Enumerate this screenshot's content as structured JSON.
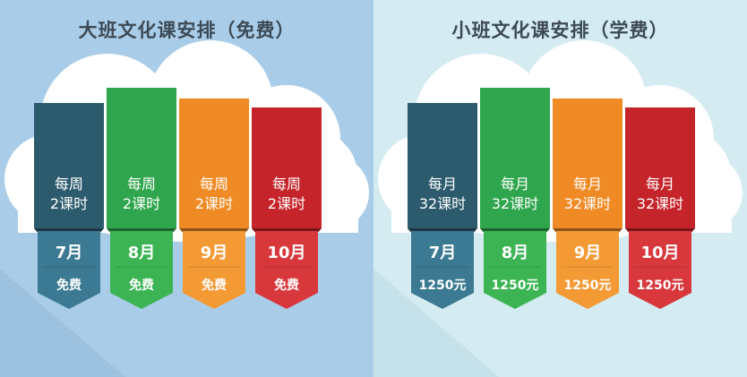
{
  "left_panel": {
    "title": "大班文化课安排（免费）",
    "columns": [
      {
        "schedule_line1": "每周",
        "schedule_line2": "2课时",
        "month": "7月",
        "price": "免费",
        "color": "#2d5b6e",
        "tag_color": "#3b7a92"
      },
      {
        "schedule_line1": "每周",
        "schedule_line2": "2课时",
        "month": "8月",
        "price": "免费",
        "color": "#2fa64d",
        "tag_color": "#3cb454"
      },
      {
        "schedule_line1": "每周",
        "schedule_line2": "2课时",
        "month": "9月",
        "price": "免费",
        "color": "#f08a24",
        "tag_color": "#f49a35"
      },
      {
        "schedule_line1": "每周",
        "schedule_line2": "2课时",
        "month": "10月",
        "price": "免费",
        "color": "#c4242a",
        "tag_color": "#d8383c"
      }
    ]
  },
  "right_panel": {
    "title": "小班文化课安排（学费）",
    "columns": [
      {
        "schedule_line1": "每月",
        "schedule_line2": "32课时",
        "month": "7月",
        "price": "1250元",
        "color": "#2d5b6e",
        "tag_color": "#3b7a92"
      },
      {
        "schedule_line1": "每月",
        "schedule_line2": "32课时",
        "month": "8月",
        "price": "1250元",
        "color": "#2fa64d",
        "tag_color": "#3cb454"
      },
      {
        "schedule_line1": "每月",
        "schedule_line2": "32课时",
        "month": "9月",
        "price": "1250元",
        "color": "#f08a24",
        "tag_color": "#f49a35"
      },
      {
        "schedule_line1": "每月",
        "schedule_line2": "32课时",
        "month": "10月",
        "price": "1250元",
        "color": "#c4242a",
        "tag_color": "#d8383c"
      }
    ]
  }
}
